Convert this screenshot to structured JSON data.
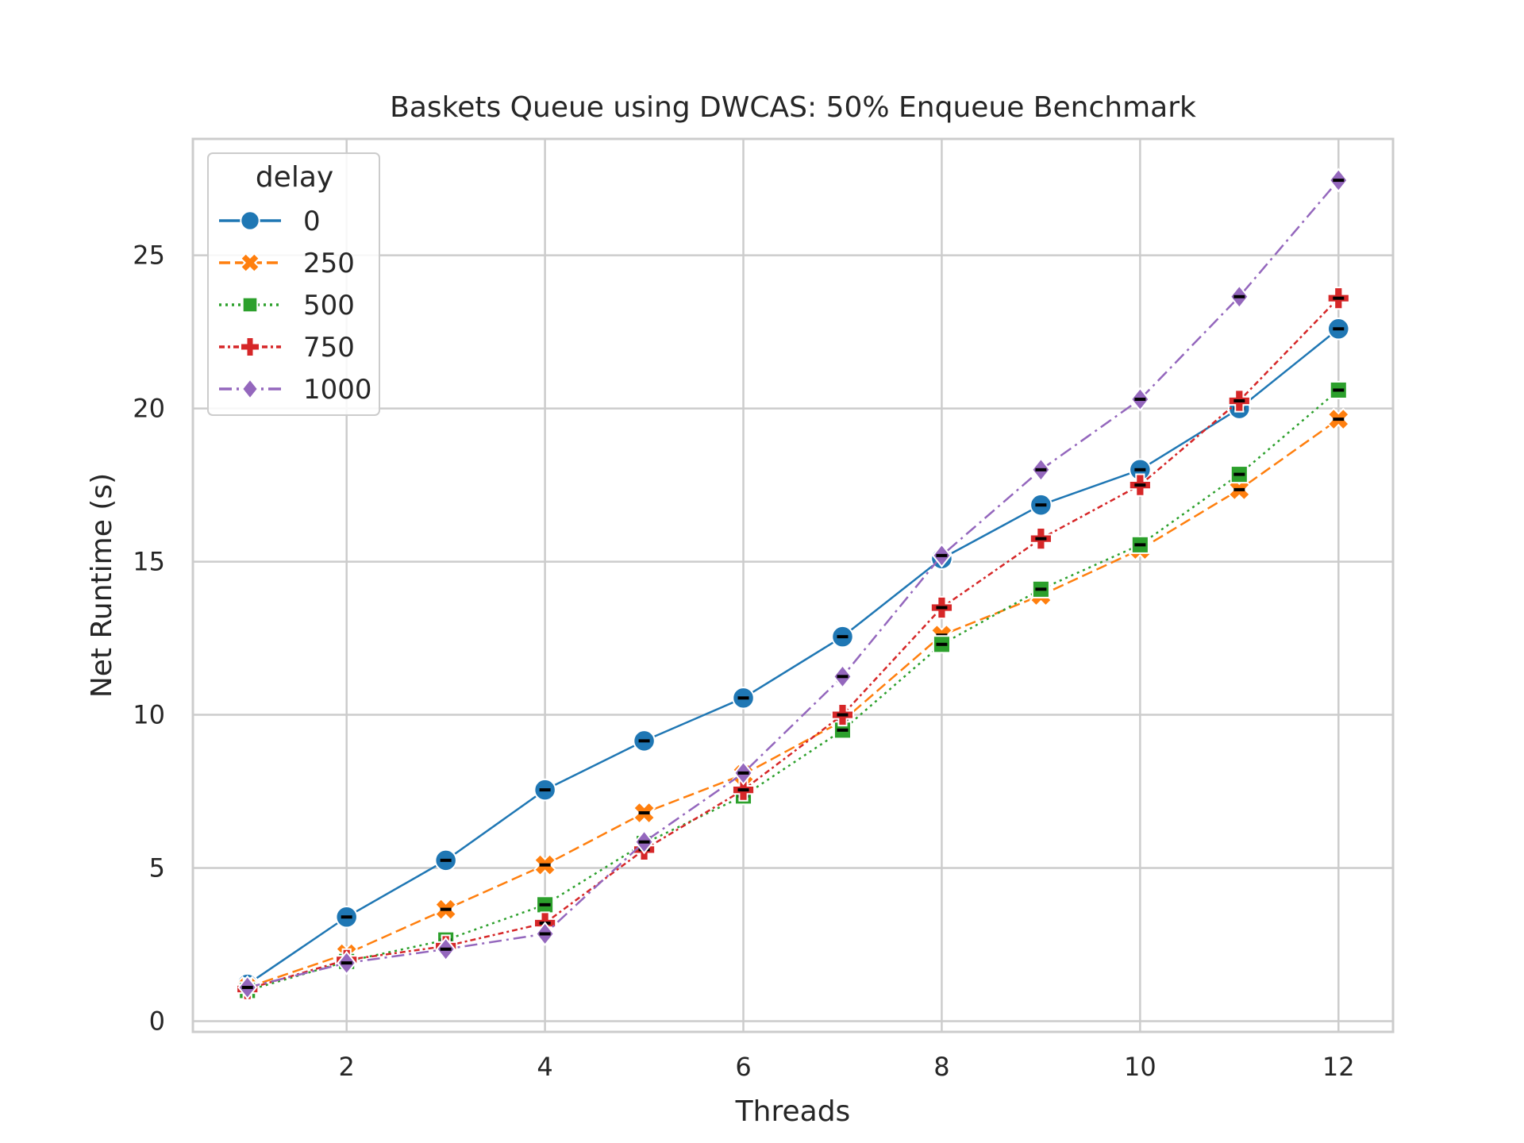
{
  "chart_data": {
    "type": "line",
    "title": "Baskets Queue using DWCAS: 50% Enqueue Benchmark",
    "xlabel": "Threads",
    "ylabel": "Net Runtime (s)",
    "xlim": [
      0.45,
      12.55
    ],
    "ylim": [
      -0.35,
      28.8
    ],
    "xticks": [
      2,
      4,
      6,
      8,
      10,
      12
    ],
    "yticks": [
      0,
      5,
      10,
      15,
      20,
      25
    ],
    "grid": true,
    "legend": {
      "title": "delay",
      "placement": "top-left"
    },
    "x": [
      1,
      2,
      3,
      4,
      5,
      6,
      7,
      8,
      9,
      10,
      11,
      12
    ],
    "series": [
      {
        "name": "0",
        "color": "#1f77b4",
        "dash": "solid",
        "marker": "circle",
        "values": [
          1.2,
          3.4,
          5.25,
          7.55,
          9.15,
          10.55,
          12.55,
          15.1,
          16.85,
          18.0,
          20.0,
          22.6
        ]
      },
      {
        "name": "250",
        "color": "#ff7f0e",
        "dash": "dashed",
        "marker": "x",
        "values": [
          1.1,
          2.2,
          3.65,
          5.1,
          6.8,
          8.05,
          9.8,
          12.6,
          13.9,
          15.4,
          17.35,
          19.65
        ]
      },
      {
        "name": "500",
        "color": "#2ca02c",
        "dash": "dotted",
        "marker": "square",
        "values": [
          1.0,
          1.95,
          2.65,
          3.8,
          5.8,
          7.35,
          9.5,
          12.3,
          14.1,
          15.55,
          17.85,
          20.6
        ]
      },
      {
        "name": "750",
        "color": "#d62728",
        "dash": "dashdot-short",
        "marker": "plus",
        "values": [
          1.05,
          2.0,
          2.45,
          3.2,
          5.6,
          7.55,
          10.0,
          13.5,
          15.75,
          17.5,
          20.25,
          23.6
        ]
      },
      {
        "name": "1000",
        "color": "#9467bd",
        "dash": "dashdot",
        "marker": "diamond",
        "values": [
          1.1,
          1.9,
          2.35,
          2.85,
          5.85,
          8.1,
          11.25,
          15.2,
          18.0,
          20.3,
          23.65,
          27.45
        ]
      }
    ]
  }
}
